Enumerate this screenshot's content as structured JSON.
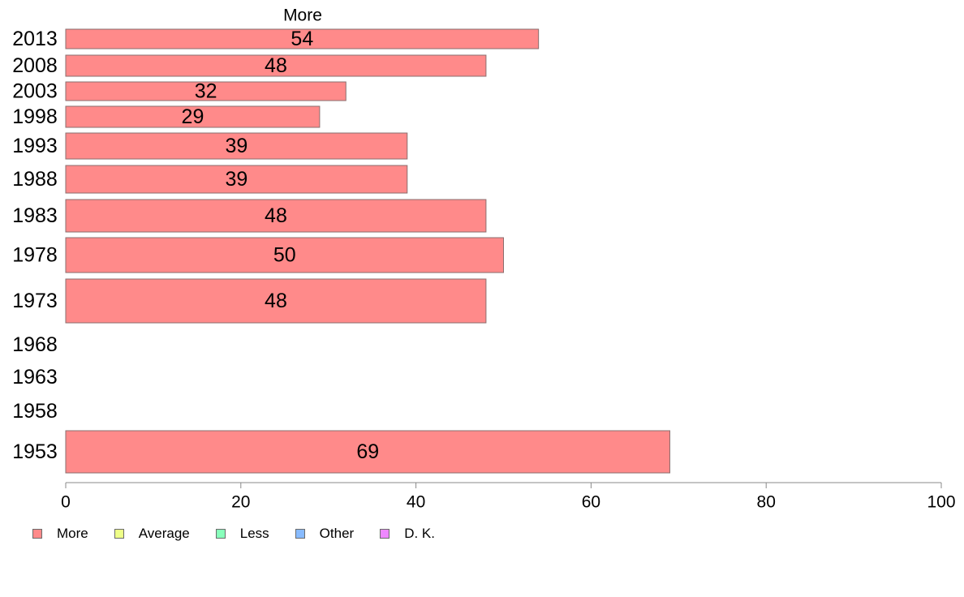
{
  "chart_data": {
    "type": "bar",
    "orientation": "horizontal",
    "title": "More",
    "xlabel": "",
    "ylabel": "",
    "xlim": [
      0,
      100
    ],
    "xticks": [
      0,
      20,
      40,
      60,
      80,
      100
    ],
    "grid": false,
    "legend_placement": "bottom-left",
    "categories": [
      "2013",
      "2008",
      "2003",
      "1998",
      "1993",
      "1988",
      "1983",
      "1978",
      "1973",
      "1968",
      "1963",
      "1958",
      "1953"
    ],
    "series": [
      {
        "name": "More",
        "color": "#ff8a8a",
        "values": [
          54,
          48,
          32,
          29,
          39,
          39,
          48,
          50,
          48,
          null,
          null,
          null,
          69
        ],
        "labels": [
          "54",
          "48",
          "32",
          "29",
          "39",
          "39",
          "48",
          "50",
          "48",
          "",
          "",
          "",
          "69"
        ]
      }
    ],
    "legend": [
      {
        "label": "More",
        "color": "#ff8a8a"
      },
      {
        "label": "Average",
        "color": "#eeff88"
      },
      {
        "label": "Less",
        "color": "#88ffbb"
      },
      {
        "label": "Other",
        "color": "#88bbff"
      },
      {
        "label": "D. K.",
        "color": "#ee88ff"
      }
    ]
  }
}
